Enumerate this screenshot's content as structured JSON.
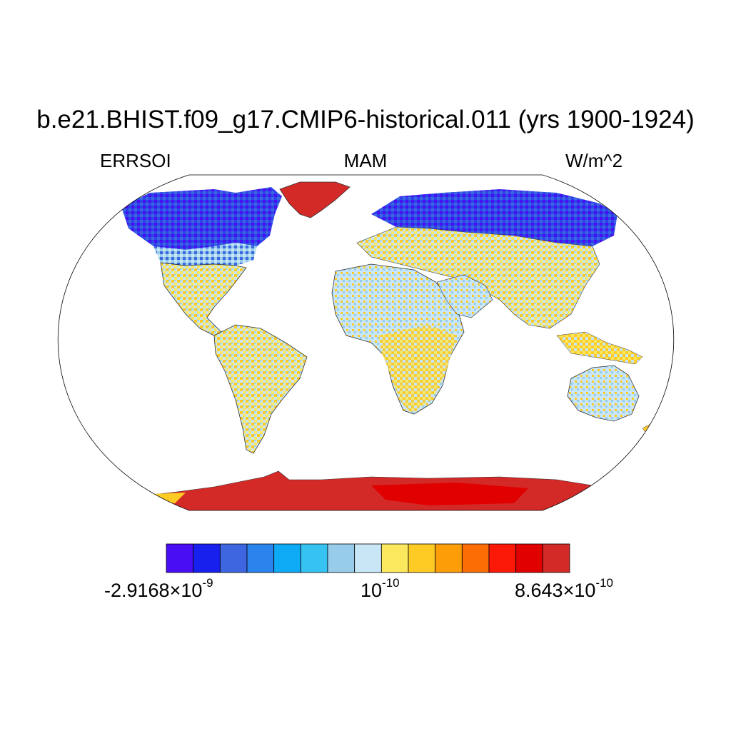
{
  "figure": {
    "title": "b.e21.BHIST.f09_g17.CMIP6-historical.011 (yrs 1900-1924)",
    "left_label": "ERRSOI",
    "center_label": "MAM",
    "right_label": "W/m^2"
  },
  "projection": "Robinson",
  "colorbar": {
    "colors": [
      "#4a0ef5",
      "#1820ee",
      "#3d66e0",
      "#2b83ec",
      "#0eaaf5",
      "#36c3f2",
      "#97cdeb",
      "#c9e6f6",
      "#fbe85e",
      "#fdcb24",
      "#fd9d07",
      "#fd6d06",
      "#fd1908",
      "#e00000",
      "#d32a28"
    ],
    "labels": {
      "low": {
        "mantissa": "-2.9168",
        "times": "×",
        "base": "10",
        "exp": "-9"
      },
      "mid": {
        "base": "10",
        "exp": "-10"
      },
      "high": {
        "mantissa": "8.643",
        "times": "×",
        "base": "10",
        "exp": "-10"
      }
    }
  }
}
